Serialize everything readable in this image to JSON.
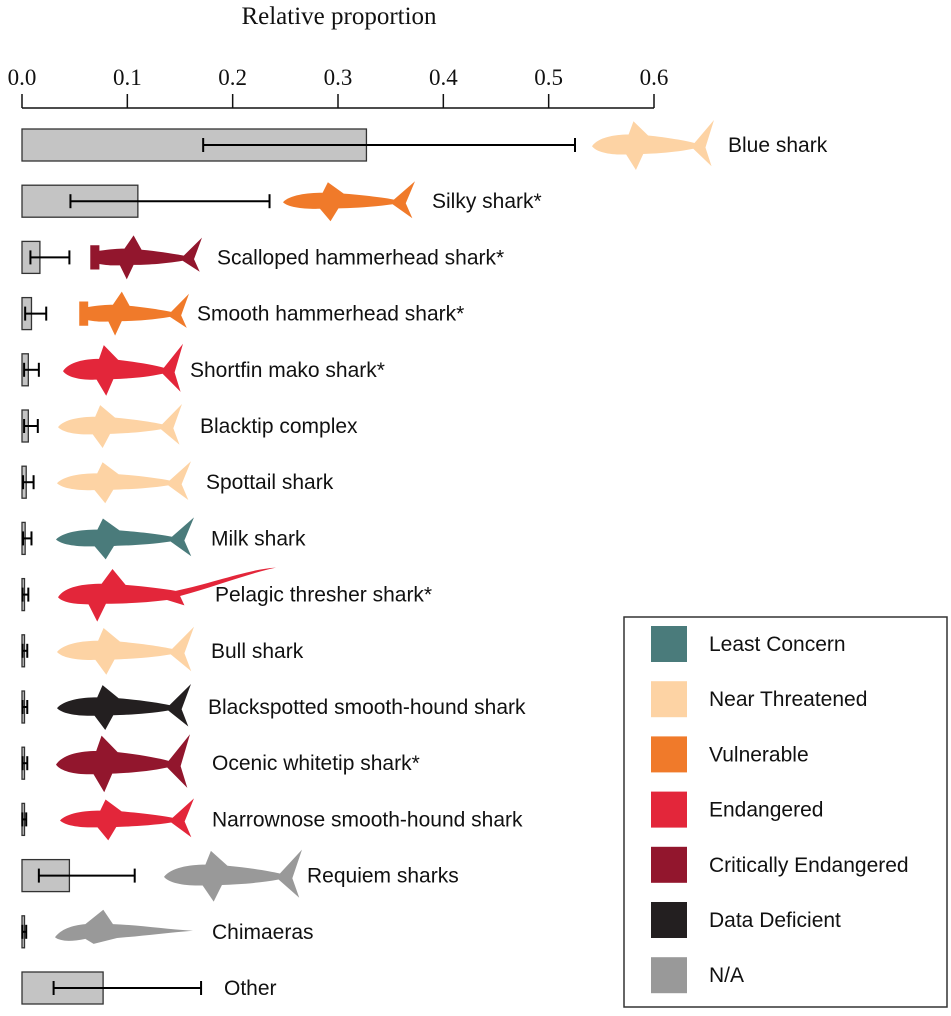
{
  "chart_data": {
    "type": "bar",
    "orientation": "horizontal",
    "title": "Relative proportion",
    "xlim": [
      0,
      0.6
    ],
    "x_ticks": [
      "0.0",
      "0.1",
      "0.2",
      "0.3",
      "0.4",
      "0.5",
      "0.6"
    ],
    "x_tick_values": [
      0,
      0.1,
      0.2,
      0.3,
      0.4,
      0.5,
      0.6
    ],
    "axis_position": "top",
    "grid": false,
    "legend_position": "bottom-right",
    "categories": [
      {
        "label": "Blue shark",
        "value": 0.327,
        "err_low": 0.172,
        "err_high": 0.525,
        "status": "Near Threatened",
        "icon": "shark-icon"
      },
      {
        "label": "Silky shark*",
        "value": 0.11,
        "err_low": 0.046,
        "err_high": 0.235,
        "status": "Vulnerable",
        "icon": "shark-icon"
      },
      {
        "label": "Scalloped hammerhead shark*",
        "value": 0.017,
        "err_low": 0.008,
        "err_high": 0.045,
        "status": "Critically Endangered",
        "icon": "hammerhead-shark-icon"
      },
      {
        "label": "Smooth hammerhead shark*",
        "value": 0.009,
        "err_low": 0.003,
        "err_high": 0.023,
        "status": "Vulnerable",
        "icon": "hammerhead-shark-icon"
      },
      {
        "label": "Shortfin mako shark*",
        "value": 0.006,
        "err_low": 0.002,
        "err_high": 0.016,
        "status": "Endangered",
        "icon": "shark-icon"
      },
      {
        "label": "Blacktip complex",
        "value": 0.006,
        "err_low": 0.002,
        "err_high": 0.015,
        "status": "Near Threatened",
        "icon": "shark-icon"
      },
      {
        "label": "Spottail shark",
        "value": 0.004,
        "err_low": 0.001,
        "err_high": 0.011,
        "status": "Near Threatened",
        "icon": "shark-icon"
      },
      {
        "label": "Milk shark",
        "value": 0.003,
        "err_low": 0.001,
        "err_high": 0.009,
        "status": "Least Concern",
        "icon": "shark-icon"
      },
      {
        "label": "Pelagic thresher shark*",
        "value": 0.002,
        "err_low": 0.0005,
        "err_high": 0.006,
        "status": "Endangered",
        "icon": "thresher-shark-icon"
      },
      {
        "label": "Bull shark",
        "value": 0.002,
        "err_low": 0.0005,
        "err_high": 0.005,
        "status": "Near Threatened",
        "icon": "shark-icon"
      },
      {
        "label": "Blackspotted smooth-hound shark",
        "value": 0.002,
        "err_low": 0.0005,
        "err_high": 0.005,
        "status": "Data Deficient",
        "icon": "shark-icon"
      },
      {
        "label": "Ocenic whitetip shark*",
        "value": 0.002,
        "err_low": 0.0005,
        "err_high": 0.005,
        "status": "Critically Endangered",
        "icon": "shark-icon"
      },
      {
        "label": "Narrownose smooth-hound shark",
        "value": 0.001,
        "err_low": 0.0003,
        "err_high": 0.004,
        "status": "Endangered",
        "icon": "shark-icon"
      },
      {
        "label": "Requiem sharks",
        "value": 0.045,
        "err_low": 0.016,
        "err_high": 0.107,
        "status": "N/A",
        "icon": "shark-icon"
      },
      {
        "label": "Chimaeras",
        "value": 0.001,
        "err_low": 0.0003,
        "err_high": 0.004,
        "status": "N/A",
        "icon": "chimaera-icon"
      },
      {
        "label": "Other",
        "value": 0.077,
        "err_low": 0.03,
        "err_high": 0.17,
        "status": "N/A",
        "icon": "shark-icon"
      }
    ],
    "legend": [
      {
        "label": "Least Concern",
        "color": "#4a7b7b"
      },
      {
        "label": "Near Threatened",
        "color": "#fdd3a4"
      },
      {
        "label": "Vulnerable",
        "color": "#f07a2a"
      },
      {
        "label": "Endangered",
        "color": "#e3263a"
      },
      {
        "label": "Critically Endangered",
        "color": "#92162d"
      },
      {
        "label": "Data Deficient",
        "color": "#231f20"
      },
      {
        "label": "N/A",
        "color": "#999999"
      }
    ],
    "bar_color": "#c4c4c4"
  }
}
